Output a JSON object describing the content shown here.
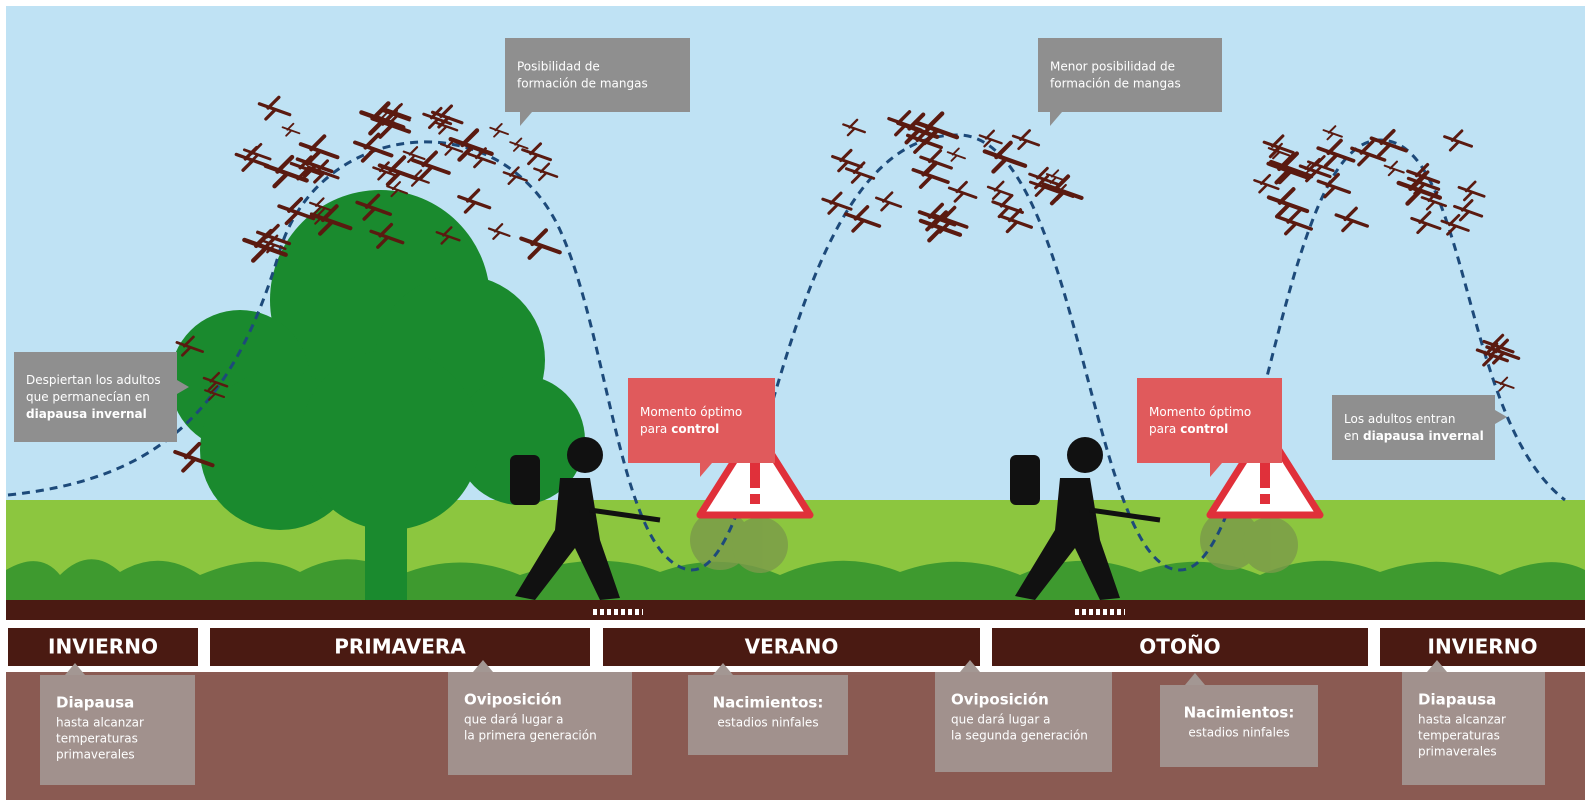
{
  "callouts": [
    {
      "lines": [
        [
          {
            "text": "Posibilidad de"
          }
        ],
        [
          {
            "text": "formación de mangas"
          }
        ]
      ]
    },
    {
      "lines": [
        [
          {
            "text": "Menor posibilidad de"
          }
        ],
        [
          {
            "text": "formación de mangas"
          }
        ]
      ]
    },
    {
      "lines": [
        [
          {
            "text": "Despiertan los adultos"
          }
        ],
        [
          {
            "text": "que permanecían en"
          }
        ],
        [
          {
            "text": "diapausa invernal",
            "bold": true
          }
        ]
      ]
    },
    {
      "lines": [
        [
          {
            "text": "Momento óptimo"
          }
        ],
        [
          {
            "text": "para"
          },
          {
            "text": "control",
            "bold": true
          }
        ]
      ]
    },
    {
      "lines": [
        [
          {
            "text": "Momento óptimo"
          }
        ],
        [
          {
            "text": "para"
          },
          {
            "text": "control",
            "bold": true
          }
        ]
      ]
    },
    {
      "lines": [
        [
          {
            "text": "Los adultos entran"
          }
        ],
        [
          {
            "text": "en"
          },
          {
            "text": "diapausa invernal",
            "bold": true
          }
        ]
      ]
    }
  ],
  "seasons": [
    "INVIERNO",
    "PRIMAVERA",
    "VERANO",
    "OTOÑO",
    "INVIERNO"
  ],
  "stages": [
    {
      "title": "Diapausa",
      "lines": [
        "hasta alcanzar",
        "temperaturas",
        "primaverales"
      ]
    },
    {
      "title": "Oviposición",
      "lines": [
        "que dará lugar a",
        "la primera generación"
      ]
    },
    {
      "title": "Nacimientos:",
      "lines": [
        "estadios ninfales"
      ]
    },
    {
      "title": "Oviposición",
      "lines": [
        "que dará lugar a",
        "la segunda generación"
      ]
    },
    {
      "title": "Nacimientos:",
      "lines": [
        "estadios ninfales"
      ]
    },
    {
      "title": "Diapausa",
      "lines": [
        "hasta alcanzar",
        "temperaturas",
        "primaverales"
      ]
    }
  ]
}
